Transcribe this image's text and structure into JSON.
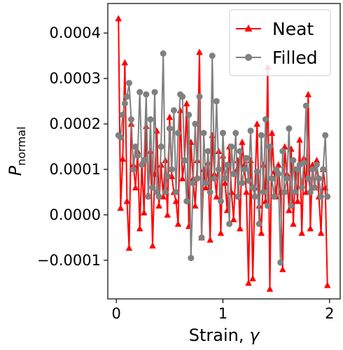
{
  "chart_data": {
    "type": "line",
    "xlabel_main": "Strain, ",
    "xlabel_symbol": "γ",
    "ylabel_main": "P",
    "ylabel_sub": "normal",
    "xlim": [
      -0.08,
      2.1
    ],
    "ylim": [
      -0.000185,
      0.000465
    ],
    "x_ticks": [
      0,
      1,
      2
    ],
    "x_tick_labels": [
      "0",
      "1",
      "2"
    ],
    "y_ticks": [
      -0.0001,
      0.0,
      0.0001,
      0.0002,
      0.0003,
      0.0004
    ],
    "y_tick_labels": [
      "−0.0001",
      "0.0000",
      "0.0001",
      "0.0002",
      "0.0003",
      "0.0004"
    ],
    "grid": false,
    "legend_position": "top-right",
    "x": [
      0.02,
      0.04,
      0.06,
      0.08,
      0.1,
      0.12,
      0.14,
      0.16,
      0.18,
      0.2,
      0.22,
      0.24,
      0.26,
      0.28,
      0.3,
      0.32,
      0.34,
      0.36,
      0.38,
      0.4,
      0.42,
      0.44,
      0.46,
      0.48,
      0.5,
      0.52,
      0.54,
      0.56,
      0.58,
      0.6,
      0.62,
      0.64,
      0.66,
      0.68,
      0.7,
      0.72,
      0.74,
      0.76,
      0.78,
      0.8,
      0.82,
      0.84,
      0.86,
      0.88,
      0.9,
      0.92,
      0.94,
      0.96,
      0.98,
      1.0,
      1.02,
      1.04,
      1.06,
      1.08,
      1.1,
      1.12,
      1.14,
      1.16,
      1.18,
      1.2,
      1.22,
      1.24,
      1.26,
      1.28,
      1.3,
      1.32,
      1.34,
      1.36,
      1.38,
      1.4,
      1.42,
      1.44,
      1.46,
      1.48,
      1.5,
      1.52,
      1.54,
      1.56,
      1.58,
      1.6,
      1.62,
      1.64,
      1.66,
      1.68,
      1.7,
      1.72,
      1.74,
      1.76,
      1.78,
      1.8,
      1.82,
      1.84,
      1.86,
      1.88,
      1.9,
      1.92,
      1.94,
      1.96,
      1.98
    ],
    "series": [
      {
        "name": "Neat",
        "color": "#ff0000",
        "marker": "triangle",
        "values": [
          0.000432,
          1.5e-05,
          0.000123,
          0.000335,
          3e-05,
          -7.3e-05,
          0.0002,
          0.00011,
          6e-05,
          0.00014,
          -3e-05,
          0.000115,
          5e-06,
          0.000195,
          4.5e-05,
          0.00014,
          -6.8e-05,
          9e-05,
          0.000185,
          2e-05,
          0.00011,
          4e-05,
          0.00012,
          0.0,
          0.000215,
          8.5e-05,
          5e-05,
          3e-05,
          -2e-05,
          0.00023,
          8e-05,
          0.00012,
          0.000245,
          -2.5e-05,
          0.00016,
          8e-05,
          2e-05,
          0.00012,
          0.000358,
          -5e-05,
          0.0001,
          6e-05,
          0.000115,
          -5.5e-05,
          0.000175,
          9e-05,
          4e-05,
          0.00014,
          -4e-05,
          0.00013,
          7e-05,
          1e-05,
          0.00015,
          5e-05,
          -1e-05,
          9.5e-05,
          0.00012,
          -3e-05,
          0.00016,
          0.00011,
          5e-05,
          -0.00015,
          0.00012,
          -0.00014,
          6e-05,
          0.0002,
          2e-05,
          -4e-05,
          0.00011,
          3e-05,
          0.000325,
          -0.000163,
          0.00018,
          9.5e-05,
          4e-05,
          0.00011,
          5e-05,
          -0.00012,
          0.00015,
          9e-05,
          1e-05,
          0.000145,
          -2e-05,
          0.0001,
          3e-05,
          0.000165,
          -4e-05,
          0.000125,
          5e-05,
          0.000265,
          -3e-05,
          0.00011,
          6e-05,
          0.00012,
          4e-05,
          -4e-05,
          0.0001,
          6e-05,
          -0.000155
        ]
      },
      {
        "name": "Filled",
        "color": "#808080",
        "marker": "circle",
        "values": [
          0.000175,
          0.00017,
          0.00022,
          0.000245,
          0.00026,
          0.00029,
          0.00021,
          0.0001,
          0.00015,
          0.00013,
          0.00027,
          0.00011,
          0.00012,
          0.000265,
          4e-05,
          0.00021,
          6e-05,
          0.00027,
          5e-05,
          4e-05,
          0.00015,
          0.000355,
          5e-05,
          8.5e-05,
          0.00019,
          0.0001,
          0.00023,
          5e-05,
          0.00018,
          0.000265,
          0.00026,
          0.00012,
          3e-05,
          0.00022,
          -9.5e-05,
          7e-05,
          0.0002,
          8e-05,
          0.00026,
          -5e-05,
          0.00018,
          7e-05,
          0.00014,
          5e-05,
          0.00035,
          8e-05,
          0.00025,
          0.0001,
          3e-05,
          0.00018,
          8e-05,
          0.00011,
          -2e-05,
          0.00015,
          9e-05,
          0.00018,
          4e-05,
          0.00014,
          7e-05,
          0.0001,
          0.000125,
          7.5e-05,
          0.000185,
          6e-05,
          4e-05,
          9.5e-05,
          -2e-05,
          0.000175,
          5e-05,
          0.00021,
          2e-05,
          0.00015,
          8e-05,
          4e-05,
          0.0001,
          9e-05,
          -0.000105,
          0.00014,
          5e-05,
          8e-05,
          0.00019,
          2e-05,
          0.00012,
          5e-05,
          0.0001,
          0.00011,
          6e-05,
          0.000115,
          0.00024,
          8e-05,
          5e-05,
          0.0001,
          6e-05,
          0.00011,
          8e-05,
          4e-05,
          0.0001,
          0.000175,
          4e-05
        ]
      }
    ]
  }
}
